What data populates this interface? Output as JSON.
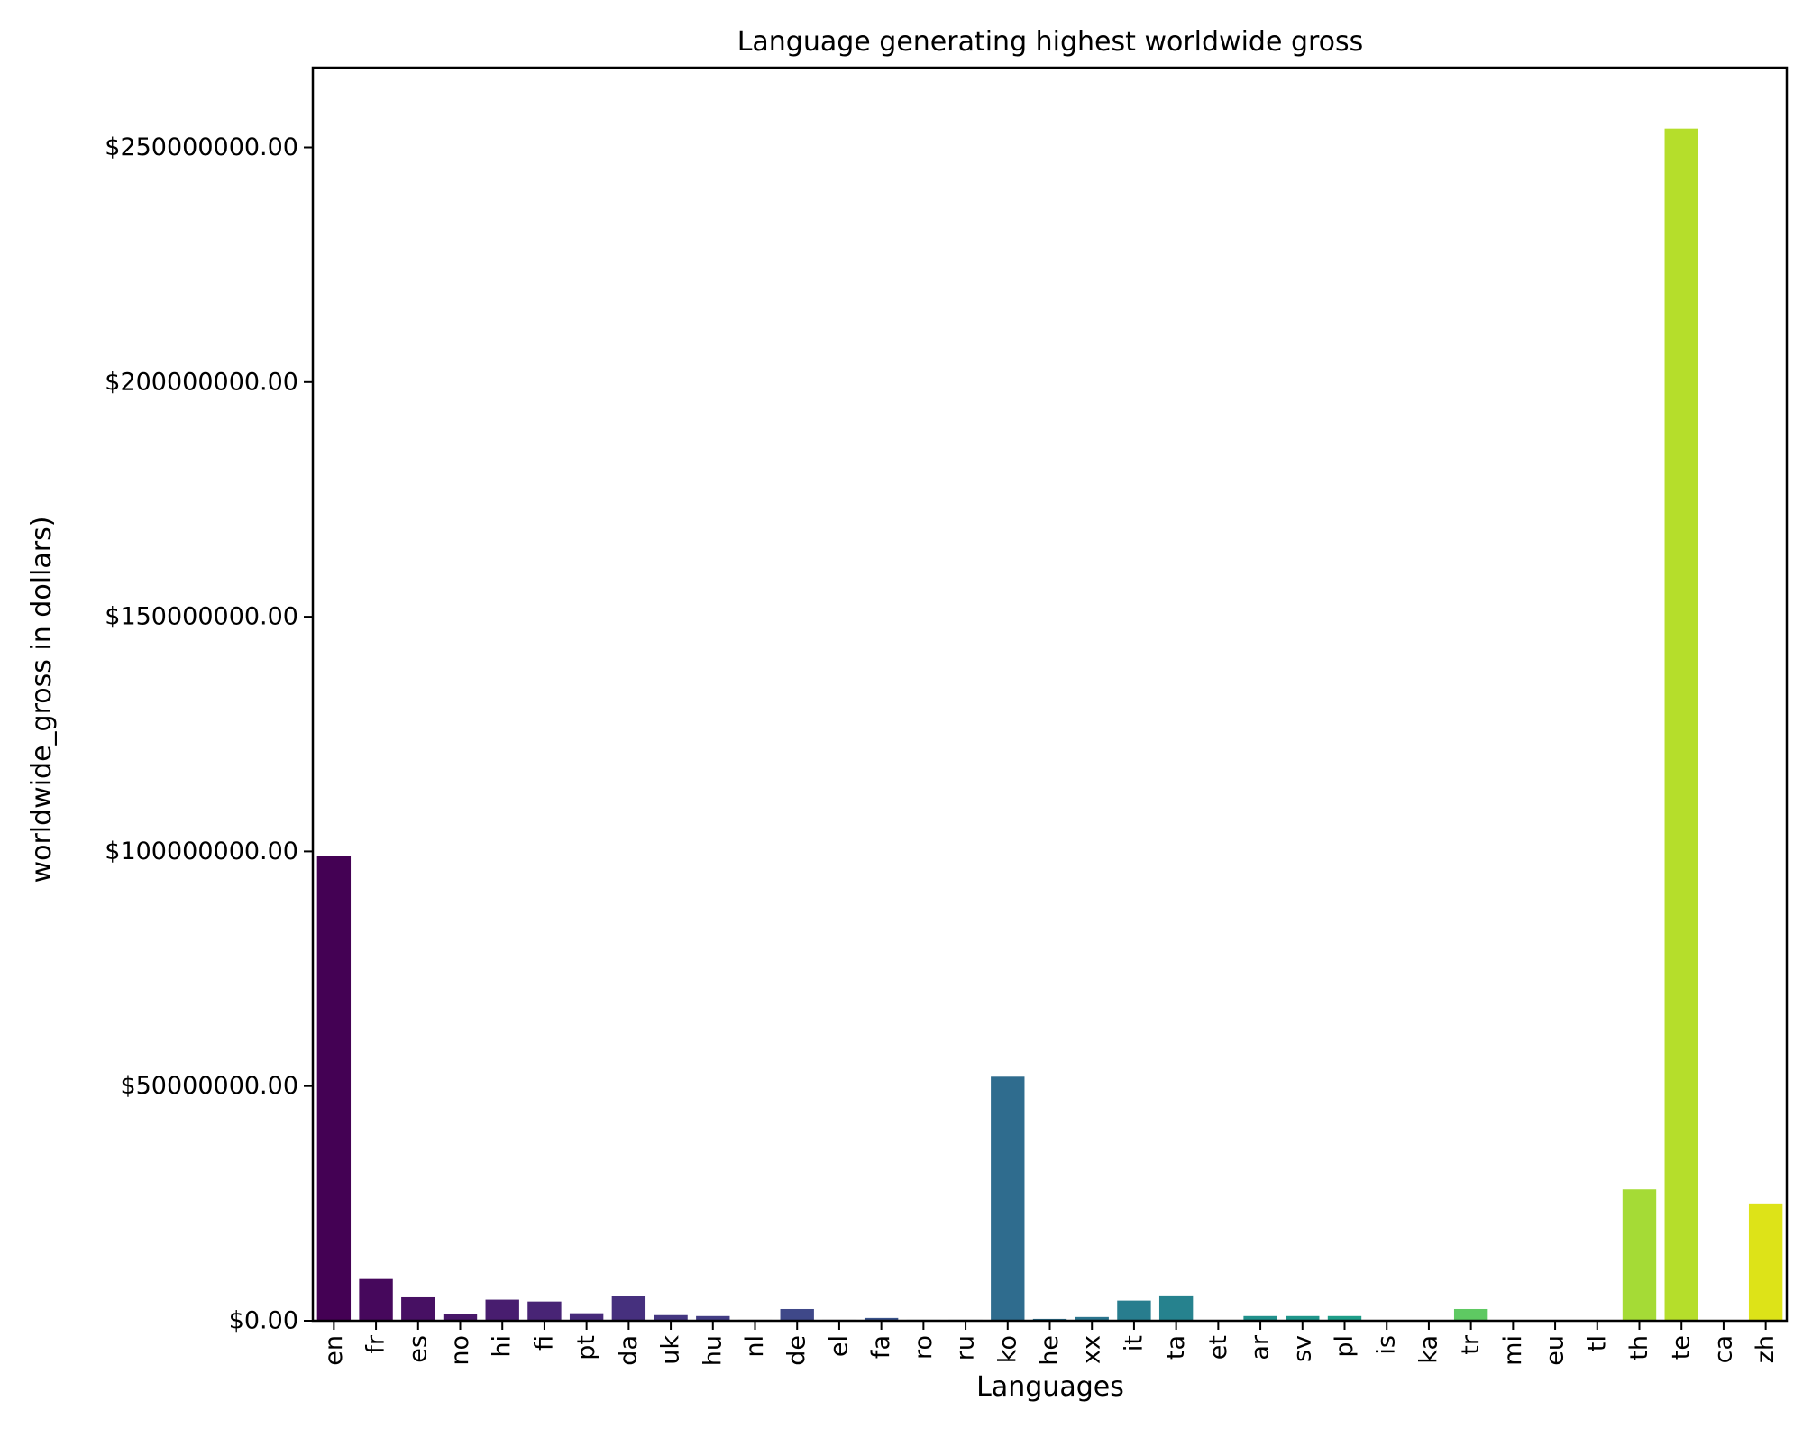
{
  "chart_data": {
    "type": "bar",
    "title": "Language generating highest worldwide gross",
    "xlabel": "Languages",
    "ylabel": "worldwide_gross in dollars)",
    "ylim": [
      0,
      267000000
    ],
    "yticks": [
      0,
      50000000,
      100000000,
      150000000,
      200000000,
      250000000
    ],
    "ytick_labels": [
      "$0.00",
      "$50000000.00",
      "$100000000.00",
      "$150000000.00",
      "$200000000.00",
      "$250000000.00"
    ],
    "grid": false,
    "legend": "none",
    "categories": [
      "en",
      "fr",
      "es",
      "no",
      "hi",
      "fi",
      "pt",
      "da",
      "uk",
      "hu",
      "nl",
      "de",
      "el",
      "fa",
      "ro",
      "ru",
      "ko",
      "he",
      "xx",
      "it",
      "ta",
      "et",
      "ar",
      "sv",
      "pl",
      "is",
      "ka",
      "tr",
      "mi",
      "eu",
      "tl",
      "th",
      "te",
      "ca",
      "zh"
    ],
    "values": [
      99000000,
      8900000,
      5000000,
      1400000,
      4500000,
      4100000,
      1600000,
      5200000,
      1200000,
      1000000,
      200000,
      2500000,
      200000,
      600000,
      200000,
      200000,
      52000000,
      400000,
      800000,
      4300000,
      5400000,
      100000,
      1000000,
      1000000,
      1000000,
      100000,
      100000,
      2500000,
      100000,
      100000,
      100000,
      28000000,
      254000000,
      100000,
      25000000
    ],
    "colors": [
      "#440154",
      "#46085c",
      "#471063",
      "#481769",
      "#481d6f",
      "#482475",
      "#472a7a",
      "#46307e",
      "#453781",
      "#433d84",
      "#414287",
      "#3f4889",
      "#3d4e8a",
      "#3a538b",
      "#38588c",
      "#355f8d",
      "#2f6c8e",
      "#2d718e",
      "#2b758e",
      "#287d8e",
      "#26828e",
      "#24868e",
      "#21918c",
      "#1f968b",
      "#1f9e89",
      "#25ac82",
      "#2ab07f",
      "#5ec962",
      "#6ccd5a",
      "#86d549",
      "#a0da39",
      "#a5db36",
      "#b5de2b",
      "#c2df23",
      "#dde318"
    ]
  }
}
